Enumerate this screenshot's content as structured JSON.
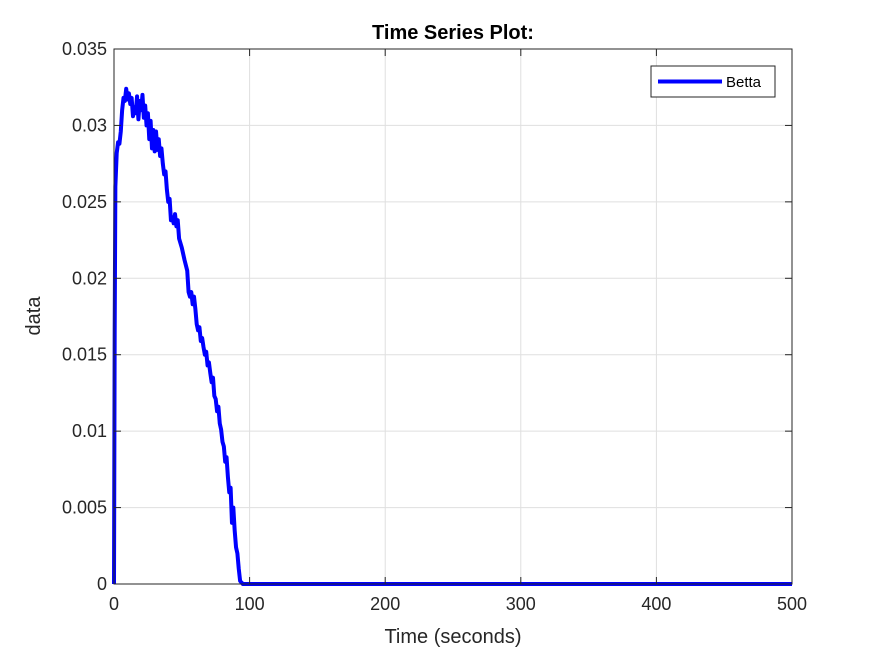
{
  "chart_data": {
    "type": "line",
    "title": "Time Series Plot:",
    "xlabel": "Time (seconds)",
    "ylabel": "data",
    "xlim": [
      0,
      500
    ],
    "ylim": [
      0,
      0.035
    ],
    "xticks": [
      0,
      100,
      200,
      300,
      400,
      500
    ],
    "xtick_labels": [
      "0",
      "100",
      "200",
      "300",
      "400",
      "500"
    ],
    "yticks": [
      0,
      0.005,
      0.01,
      0.015,
      0.02,
      0.025,
      0.03,
      0.035
    ],
    "ytick_labels": [
      "0",
      "0.005",
      "0.01",
      "0.015",
      "0.02",
      "0.025",
      "0.03",
      "0.035"
    ],
    "grid": true,
    "legend_position": "top-right",
    "series": [
      {
        "name": "Betta",
        "color": "#0000ff",
        "x": [
          0,
          0.5,
          1,
          2,
          3,
          4,
          5,
          6,
          7,
          8,
          9,
          10,
          11,
          12,
          13,
          14,
          15,
          16,
          17,
          18,
          19,
          20,
          21,
          22,
          23,
          24,
          25,
          26,
          27,
          28,
          29,
          30,
          31,
          32,
          33,
          34,
          35,
          36,
          37,
          38,
          39,
          40,
          41,
          42,
          43,
          44,
          45,
          46,
          47,
          48,
          50,
          52,
          54,
          55,
          56,
          57,
          58,
          59,
          60,
          61,
          62,
          63,
          64,
          65,
          66,
          67,
          68,
          69,
          70,
          71,
          72,
          73,
          74,
          75,
          76,
          77,
          78,
          79,
          80,
          81,
          82,
          83,
          84,
          85,
          86,
          87,
          88,
          89,
          90,
          91,
          92,
          93,
          95,
          100,
          150,
          200,
          300,
          400,
          500
        ],
        "y": [
          0,
          0.0165,
          0.026,
          0.0282,
          0.0289,
          0.0288,
          0.0296,
          0.031,
          0.0318,
          0.0316,
          0.0324,
          0.0317,
          0.0321,
          0.0314,
          0.0318,
          0.0306,
          0.0312,
          0.0308,
          0.0319,
          0.0304,
          0.0316,
          0.031,
          0.032,
          0.0305,
          0.0313,
          0.03,
          0.0308,
          0.0291,
          0.0303,
          0.0285,
          0.0297,
          0.0283,
          0.0296,
          0.0284,
          0.0291,
          0.028,
          0.0285,
          0.0275,
          0.0268,
          0.027,
          0.0258,
          0.025,
          0.0252,
          0.0238,
          0.024,
          0.0236,
          0.0242,
          0.0234,
          0.0238,
          0.0226,
          0.022,
          0.0212,
          0.0205,
          0.0191,
          0.0188,
          0.0191,
          0.0183,
          0.0188,
          0.018,
          0.017,
          0.0166,
          0.0168,
          0.0159,
          0.0161,
          0.0155,
          0.015,
          0.0152,
          0.0143,
          0.0145,
          0.0138,
          0.0132,
          0.0135,
          0.0123,
          0.0121,
          0.0113,
          0.0116,
          0.0105,
          0.0101,
          0.0093,
          0.009,
          0.008,
          0.0083,
          0.007,
          0.006,
          0.0063,
          0.004,
          0.005,
          0.0035,
          0.0024,
          0.002,
          0.001,
          0.0002,
          0,
          0,
          0,
          0,
          0,
          0,
          0
        ]
      }
    ]
  }
}
